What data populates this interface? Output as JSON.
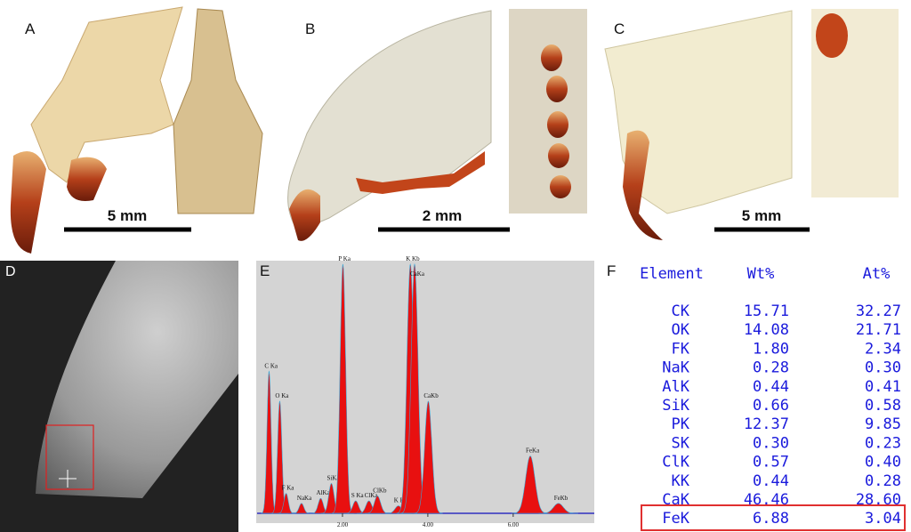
{
  "panels": {
    "a": {
      "label": "A",
      "scale": "5 mm"
    },
    "b": {
      "label": "B",
      "scale": "2 mm"
    },
    "c": {
      "label": "C",
      "scale": "5 mm"
    },
    "d": {
      "label": "D"
    },
    "e": {
      "label": "E"
    },
    "f": {
      "label": "F"
    }
  },
  "spectrum": {
    "xlim": [
      0,
      7.9
    ],
    "ylim": [
      0,
      100
    ],
    "xticks": [
      {
        "value": 2,
        "label": "2.00"
      },
      {
        "value": 4,
        "label": "4.00"
      },
      {
        "value": 6,
        "label": "6.00"
      }
    ],
    "peaks": [
      {
        "label": "C Ka",
        "x": 0.28,
        "height": 57
      },
      {
        "label": "O Ka",
        "x": 0.53,
        "height": 45
      },
      {
        "label": "F Ka",
        "x": 0.68,
        "height": 8
      },
      {
        "label": "NaKa",
        "x": 1.04,
        "height": 4
      },
      {
        "label": "AlKa",
        "x": 1.49,
        "height": 6
      },
      {
        "label": "SiKa",
        "x": 1.74,
        "height": 12
      },
      {
        "label": "P Ka",
        "x": 2.01,
        "height": 100
      },
      {
        "label": "S Ka",
        "x": 2.31,
        "height": 5
      },
      {
        "label": "ClKa",
        "x": 2.62,
        "height": 5
      },
      {
        "label": "ClKb",
        "x": 2.82,
        "height": 7
      },
      {
        "label": "K Ka",
        "x": 3.31,
        "height": 3
      },
      {
        "label": "K Kb",
        "x": 3.59,
        "height": 100
      },
      {
        "label": "CaKa",
        "x": 3.69,
        "height": 100
      },
      {
        "label": "CaKb",
        "x": 4.01,
        "height": 45
      },
      {
        "label": "FeKa",
        "x": 6.4,
        "height": 23
      },
      {
        "label": "FeKb",
        "x": 7.06,
        "height": 4
      }
    ]
  },
  "table": {
    "header": [
      "Element",
      "Wt%",
      "At%"
    ],
    "rows": [
      [
        "CK",
        "15.71",
        "32.27"
      ],
      [
        "OK",
        "14.08",
        "21.71"
      ],
      [
        "FK",
        "1.80",
        "2.34"
      ],
      [
        "NaK",
        "0.28",
        "0.30"
      ],
      [
        "AlK",
        "0.44",
        "0.41"
      ],
      [
        "SiK",
        "0.66",
        "0.58"
      ],
      [
        "PK",
        "12.37",
        "9.85"
      ],
      [
        "SK",
        "0.30",
        "0.23"
      ],
      [
        "ClK",
        "0.57",
        "0.40"
      ],
      [
        "KK",
        "0.44",
        "0.28"
      ],
      [
        "CaK",
        "46.46",
        "28.60"
      ],
      [
        "FeK",
        "6.88",
        "3.04"
      ]
    ]
  }
}
